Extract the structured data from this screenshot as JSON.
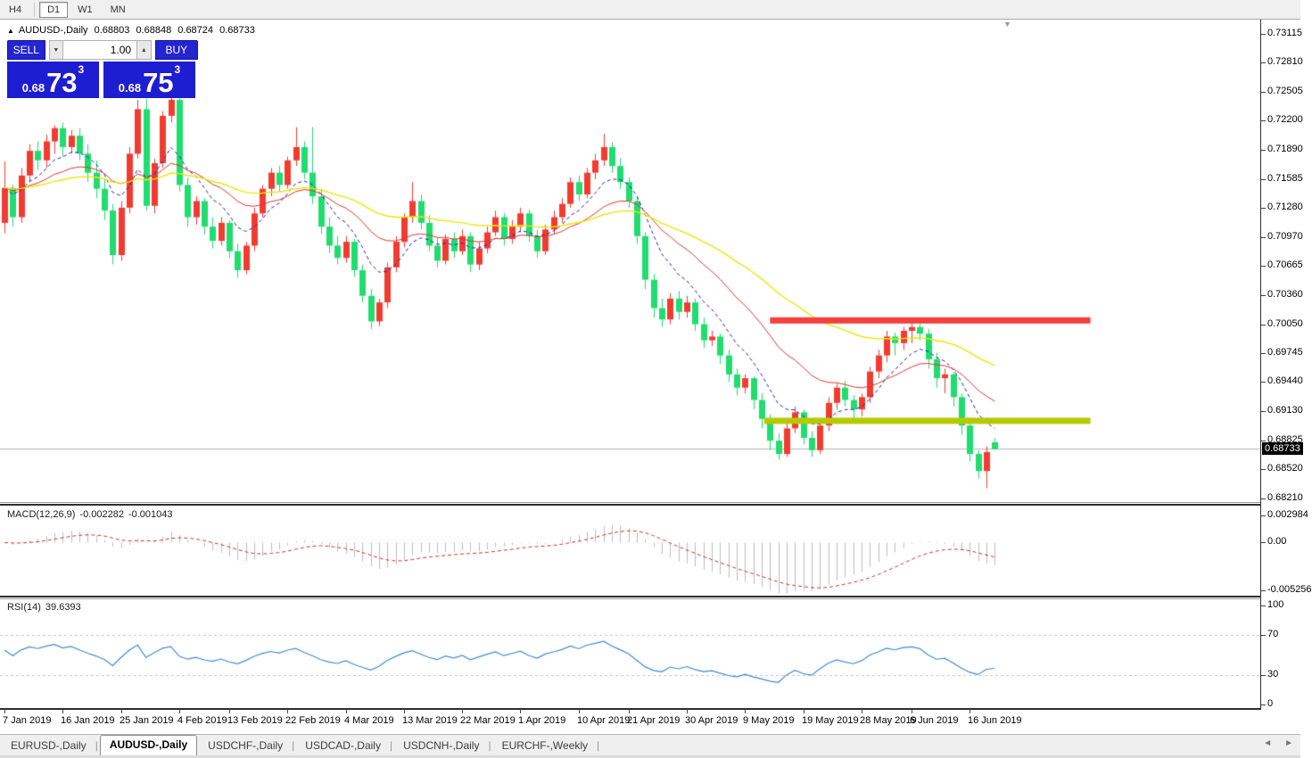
{
  "toolbar": {
    "timeframes": [
      {
        "label": "H4",
        "active": false
      },
      {
        "label": "D1",
        "active": true
      },
      {
        "label": "W1",
        "active": false
      },
      {
        "label": "MN",
        "active": false
      }
    ]
  },
  "header": {
    "collapse_icon": "▲",
    "title": "AUDUSD-,Daily",
    "open": "0.68803",
    "high": "0.68848",
    "low": "0.68724",
    "close": "0.68733"
  },
  "window": {
    "scroll_marker": "▼"
  },
  "trade_panel": {
    "sell_label": "SELL",
    "buy_label": "BUY",
    "volume": "1.00",
    "spin_down": "▼",
    "spin_up": "▲",
    "sell_price": {
      "prefix": "0.68",
      "big": "73",
      "sup": "3"
    },
    "buy_price": {
      "prefix": "0.68",
      "big": "75",
      "sup": "3"
    }
  },
  "price_axis": {
    "ticks": [
      "0.73115",
      "0.72810",
      "0.72505",
      "0.72200",
      "0.71890",
      "0.71585",
      "0.71280",
      "0.70970",
      "0.70665",
      "0.70360",
      "0.70050",
      "0.69745",
      "0.69440",
      "0.69130",
      "0.68825",
      "0.68520",
      "0.68210"
    ],
    "current": "0.68733"
  },
  "date_axis": [
    {
      "label": "7 Jan 2019",
      "bar": 0
    },
    {
      "label": "16 Jan 2019",
      "bar": 7
    },
    {
      "label": "25 Jan 2019",
      "bar": 14
    },
    {
      "label": "4 Feb 2019",
      "bar": 21
    },
    {
      "label": "13 Feb 2019",
      "bar": 27
    },
    {
      "label": "22 Feb 2019",
      "bar": 34
    },
    {
      "label": "4 Mar 2019",
      "bar": 41
    },
    {
      "label": "13 Mar 2019",
      "bar": 48
    },
    {
      "label": "22 Mar 2019",
      "bar": 55
    },
    {
      "label": "1 Apr 2019",
      "bar": 62
    },
    {
      "label": "10 Apr 2019",
      "bar": 69
    },
    {
      "label": "21 Apr 2019",
      "bar": 75
    },
    {
      "label": "30 Apr 2019",
      "bar": 82
    },
    {
      "label": "9 May 2019",
      "bar": 89
    },
    {
      "label": "19 May 2019",
      "bar": 96
    },
    {
      "label": "28 May 2019",
      "bar": 103
    },
    {
      "label": "6 Jun 2019",
      "bar": 109
    },
    {
      "label": "16 Jun 2019",
      "bar": 116
    }
  ],
  "macd_panel": {
    "name": "MACD(12,26,9)",
    "value_main": "-0.002282",
    "value_signal": "-0.001043",
    "axis": [
      0.002984,
      0,
      -0.005256
    ],
    "axis_labels": [
      "0.002984",
      "0.00",
      "-0.005256"
    ],
    "histogram_color": "#bdbdbd",
    "signal_color": "#d32f2f"
  },
  "rsi_panel": {
    "name": "RSI(14)",
    "value": "39.6393",
    "axis": [
      100,
      70,
      30,
      0
    ],
    "levels": [
      70,
      30
    ],
    "line_color": "#3f8bd6",
    "level_color": "#c4c4c4"
  },
  "tabs": [
    {
      "label": "EURUSD-,Daily",
      "active": false
    },
    {
      "label": "AUDUSD-,Daily",
      "active": true
    },
    {
      "label": "USDCHF-,Daily",
      "active": false
    },
    {
      "label": "USDCAD-,Daily",
      "active": false
    },
    {
      "label": "USDCNH-,Daily",
      "active": false
    },
    {
      "label": "EURCHF-,Weekly",
      "active": false
    }
  ],
  "tab_scroll": {
    "left": "◄",
    "right": "►"
  },
  "chart_data": {
    "type": "candlestick",
    "symbol": "AUDUSD",
    "timeframe": "Daily",
    "colors": {
      "bull": "#f23b30",
      "bear": "#1fdd6e",
      "current_price_line": "#b4b4b4"
    },
    "price_axis_range": {
      "max": 0.73115,
      "min": 0.6821
    },
    "current_price": 0.68733,
    "last_ohlc": {
      "open": 0.68803,
      "high": 0.68848,
      "low": 0.68724,
      "close": 0.68733
    },
    "moving_averages": [
      {
        "type": "ema",
        "period": 8,
        "color": "#2222cc",
        "dashed": true,
        "width": 1
      },
      {
        "type": "ema",
        "period": 20,
        "color": "#e0352c",
        "dashed": false,
        "width": 1
      },
      {
        "type": "ema",
        "period": 45,
        "color": "#e8e800",
        "dashed": false,
        "width": 1.4
      }
    ],
    "hlines": [
      {
        "price": 0.7009,
        "color": "#f4413d",
        "thickness": 7,
        "from_bar": 92,
        "to_bar": 130.5
      },
      {
        "price": 0.6903,
        "color": "#b5c900",
        "thickness": 7,
        "from_bar": 91.3,
        "to_bar": 130.5
      }
    ],
    "macd": {
      "fast": 12,
      "slow": 26,
      "signal": 9,
      "axis_max": 0.002984,
      "axis_min": -0.005256
    },
    "rsi": {
      "period": 14,
      "max": 100,
      "min": 0,
      "last_value": 39.6393
    },
    "candles": [
      [
        0.7112,
        0.7177,
        0.7101,
        0.7149
      ],
      [
        0.7149,
        0.7152,
        0.7108,
        0.7118
      ],
      [
        0.7118,
        0.717,
        0.7112,
        0.7162
      ],
      [
        0.7162,
        0.7195,
        0.7155,
        0.7188
      ],
      [
        0.7188,
        0.7198,
        0.7168,
        0.7178
      ],
      [
        0.7178,
        0.7205,
        0.717,
        0.7198
      ],
      [
        0.7198,
        0.7215,
        0.7185,
        0.7212
      ],
      [
        0.7212,
        0.7218,
        0.7182,
        0.7192
      ],
      [
        0.7192,
        0.721,
        0.7185,
        0.7204
      ],
      [
        0.7204,
        0.7212,
        0.7178,
        0.7185
      ],
      [
        0.7185,
        0.7195,
        0.7155,
        0.7165
      ],
      [
        0.7165,
        0.7178,
        0.7138,
        0.7148
      ],
      [
        0.7148,
        0.7158,
        0.7115,
        0.7125
      ],
      [
        0.7125,
        0.7132,
        0.7068,
        0.7078
      ],
      [
        0.7078,
        0.7135,
        0.7072,
        0.7128
      ],
      [
        0.7128,
        0.7192,
        0.7122,
        0.7185
      ],
      [
        0.7185,
        0.7242,
        0.718,
        0.7232
      ],
      [
        0.7232,
        0.7243,
        0.7125,
        0.713
      ],
      [
        0.713,
        0.718,
        0.7122,
        0.7175
      ],
      [
        0.7175,
        0.723,
        0.717,
        0.7225
      ],
      [
        0.7225,
        0.7245,
        0.7218,
        0.7242
      ],
      [
        0.7242,
        0.7248,
        0.7145,
        0.7152
      ],
      [
        0.7152,
        0.716,
        0.7108,
        0.7118
      ],
      [
        0.7118,
        0.714,
        0.711,
        0.7135
      ],
      [
        0.7135,
        0.7138,
        0.71,
        0.7108
      ],
      [
        0.7108,
        0.7118,
        0.7085,
        0.7093
      ],
      [
        0.7093,
        0.7118,
        0.7088,
        0.7112
      ],
      [
        0.7112,
        0.7115,
        0.7075,
        0.7082
      ],
      [
        0.7082,
        0.709,
        0.7054,
        0.7062
      ],
      [
        0.7062,
        0.7092,
        0.7058,
        0.7088
      ],
      [
        0.7088,
        0.7128,
        0.7082,
        0.7122
      ],
      [
        0.7122,
        0.7152,
        0.7118,
        0.7148
      ],
      [
        0.7148,
        0.717,
        0.714,
        0.7165
      ],
      [
        0.7165,
        0.7172,
        0.7145,
        0.7152
      ],
      [
        0.7152,
        0.7182,
        0.7148,
        0.7178
      ],
      [
        0.7178,
        0.7213,
        0.7172,
        0.7192
      ],
      [
        0.7192,
        0.7198,
        0.7158,
        0.7165
      ],
      [
        0.7165,
        0.7213,
        0.7132,
        0.714
      ],
      [
        0.714,
        0.7148,
        0.71,
        0.7108
      ],
      [
        0.7108,
        0.7118,
        0.708,
        0.7088
      ],
      [
        0.7088,
        0.7098,
        0.7068,
        0.7075
      ],
      [
        0.7075,
        0.7098,
        0.707,
        0.7092
      ],
      [
        0.7092,
        0.7095,
        0.7055,
        0.7062
      ],
      [
        0.7062,
        0.7068,
        0.7028,
        0.7035
      ],
      [
        0.7035,
        0.7042,
        0.7,
        0.7008
      ],
      [
        0.7008,
        0.7032,
        0.7003,
        0.7028
      ],
      [
        0.7028,
        0.707,
        0.7022,
        0.7065
      ],
      [
        0.7065,
        0.7098,
        0.706,
        0.7092
      ],
      [
        0.7092,
        0.7122,
        0.7086,
        0.7118
      ],
      [
        0.7118,
        0.7155,
        0.7112,
        0.7135
      ],
      [
        0.7135,
        0.7142,
        0.7105,
        0.7112
      ],
      [
        0.7112,
        0.712,
        0.7082,
        0.7088
      ],
      [
        0.7088,
        0.7096,
        0.7065,
        0.7072
      ],
      [
        0.7072,
        0.71,
        0.7068,
        0.7095
      ],
      [
        0.7095,
        0.7102,
        0.7075,
        0.7082
      ],
      [
        0.7082,
        0.7105,
        0.7078,
        0.7098
      ],
      [
        0.7098,
        0.7102,
        0.706,
        0.7068
      ],
      [
        0.7068,
        0.7092,
        0.7062,
        0.7085
      ],
      [
        0.7085,
        0.7108,
        0.708,
        0.7102
      ],
      [
        0.7102,
        0.7125,
        0.7098,
        0.7118
      ],
      [
        0.7118,
        0.7122,
        0.7088,
        0.7095
      ],
      [
        0.7095,
        0.7115,
        0.709,
        0.7108
      ],
      [
        0.7108,
        0.7128,
        0.7102,
        0.7122
      ],
      [
        0.7122,
        0.7126,
        0.7092,
        0.7098
      ],
      [
        0.7098,
        0.7105,
        0.7075,
        0.7082
      ],
      [
        0.7082,
        0.711,
        0.7078,
        0.7105
      ],
      [
        0.7105,
        0.7125,
        0.71,
        0.7118
      ],
      [
        0.7118,
        0.7138,
        0.7112,
        0.7132
      ],
      [
        0.7132,
        0.716,
        0.7128,
        0.7155
      ],
      [
        0.7155,
        0.7162,
        0.7135,
        0.7142
      ],
      [
        0.7142,
        0.717,
        0.7138,
        0.7165
      ],
      [
        0.7165,
        0.7185,
        0.7158,
        0.7178
      ],
      [
        0.7178,
        0.7206,
        0.7172,
        0.7192
      ],
      [
        0.7192,
        0.7197,
        0.7165,
        0.7172
      ],
      [
        0.7172,
        0.718,
        0.7148,
        0.7155
      ],
      [
        0.7155,
        0.716,
        0.7128,
        0.7135
      ],
      [
        0.7135,
        0.714,
        0.709,
        0.7098
      ],
      [
        0.7098,
        0.7102,
        0.7042,
        0.7052
      ],
      [
        0.7052,
        0.7058,
        0.7012,
        0.7022
      ],
      [
        0.7022,
        0.7032,
        0.7002,
        0.701
      ],
      [
        0.701,
        0.7038,
        0.7005,
        0.7032
      ],
      [
        0.7032,
        0.704,
        0.701,
        0.7018
      ],
      [
        0.7018,
        0.7035,
        0.7012,
        0.7028
      ],
      [
        0.7028,
        0.7032,
        0.6998,
        0.7005
      ],
      [
        0.7005,
        0.7012,
        0.698,
        0.6988
      ],
      [
        0.6988,
        0.6998,
        0.6982,
        0.6992
      ],
      [
        0.6992,
        0.6995,
        0.6963,
        0.6972
      ],
      [
        0.6972,
        0.6978,
        0.6944,
        0.6952
      ],
      [
        0.6952,
        0.6958,
        0.693,
        0.6938
      ],
      [
        0.6938,
        0.6952,
        0.6932,
        0.6948
      ],
      [
        0.6948,
        0.695,
        0.6915,
        0.6925
      ],
      [
        0.6925,
        0.6932,
        0.6895,
        0.6905
      ],
      [
        0.6905,
        0.691,
        0.6872,
        0.6882
      ],
      [
        0.6882,
        0.689,
        0.6862,
        0.6868
      ],
      [
        0.6868,
        0.69,
        0.6865,
        0.6895
      ],
      [
        0.6895,
        0.6918,
        0.689,
        0.6912
      ],
      [
        0.6912,
        0.6915,
        0.6878,
        0.6885
      ],
      [
        0.6885,
        0.6892,
        0.6865,
        0.6872
      ],
      [
        0.6872,
        0.6902,
        0.6868,
        0.6898
      ],
      [
        0.6898,
        0.6928,
        0.6892,
        0.6922
      ],
      [
        0.6922,
        0.6942,
        0.6915,
        0.6938
      ],
      [
        0.6938,
        0.6945,
        0.6918,
        0.6925
      ],
      [
        0.6925,
        0.693,
        0.6905,
        0.6915
      ],
      [
        0.6915,
        0.6932,
        0.6908,
        0.6928
      ],
      [
        0.6928,
        0.696,
        0.6922,
        0.6955
      ],
      [
        0.6955,
        0.6978,
        0.6948,
        0.6972
      ],
      [
        0.6972,
        0.6998,
        0.6965,
        0.6992
      ],
      [
        0.6992,
        0.6996,
        0.6972,
        0.6985
      ],
      [
        0.6985,
        0.7002,
        0.6978,
        0.6998
      ],
      [
        0.6998,
        0.7008,
        0.6985,
        0.7002
      ],
      [
        0.7002,
        0.7012,
        0.6988,
        0.6995
      ],
      [
        0.6995,
        0.7,
        0.6958,
        0.6968
      ],
      [
        0.6968,
        0.6975,
        0.6938,
        0.6948
      ],
      [
        0.6948,
        0.6958,
        0.6932,
        0.6952
      ],
      [
        0.6952,
        0.6955,
        0.6918,
        0.6928
      ],
      [
        0.6928,
        0.6932,
        0.6888,
        0.6898
      ],
      [
        0.6898,
        0.6902,
        0.686,
        0.6868
      ],
      [
        0.6868,
        0.6872,
        0.6842,
        0.685
      ],
      [
        0.685,
        0.6876,
        0.6832,
        0.687
      ],
      [
        0.68803,
        0.68848,
        0.68724,
        0.68733
      ]
    ]
  }
}
